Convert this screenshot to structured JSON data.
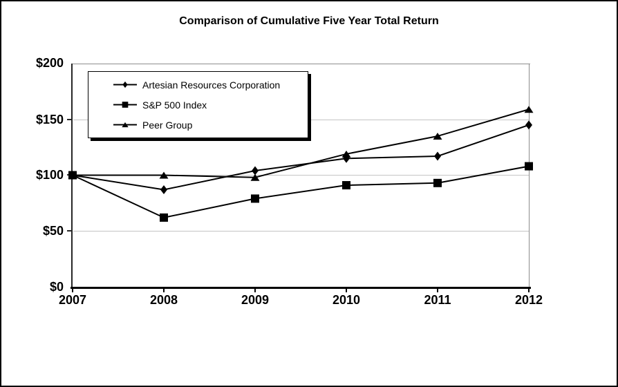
{
  "title": "Comparison of Cumulative Five Year Total Return",
  "colors": {
    "series": "#000000",
    "gridline": "#c4c4c4",
    "frame": "#8c8c8c",
    "background": "#ffffff"
  },
  "chart_data": {
    "type": "line",
    "title": "Comparison of Cumulative Five Year Total Return",
    "x": [
      2007,
      2008,
      2009,
      2010,
      2011,
      2012
    ],
    "x_labels": [
      "2007",
      "2008",
      "2009",
      "2010",
      "2011",
      "2012"
    ],
    "ytick_labels": [
      "$200",
      "$150",
      "$100",
      "$50",
      "$0"
    ],
    "ytick_values": [
      200,
      150,
      100,
      50,
      0
    ],
    "ylim": [
      0,
      200
    ],
    "xlabel": "",
    "ylabel": "",
    "grid": "horizontal",
    "legend_position": "inside-top-left",
    "series": [
      {
        "name": "Artesian Resources Corporation",
        "marker": "diamond",
        "color": "#000000",
        "values": [
          100,
          87,
          104,
          115,
          117,
          145
        ]
      },
      {
        "name": "S&P 500 Index",
        "marker": "square",
        "color": "#000000",
        "values": [
          100,
          62,
          79,
          91,
          93,
          108
        ]
      },
      {
        "name": "Peer Group",
        "marker": "triangle",
        "color": "#000000",
        "values": [
          100,
          100,
          98,
          119,
          135,
          159
        ]
      }
    ]
  }
}
